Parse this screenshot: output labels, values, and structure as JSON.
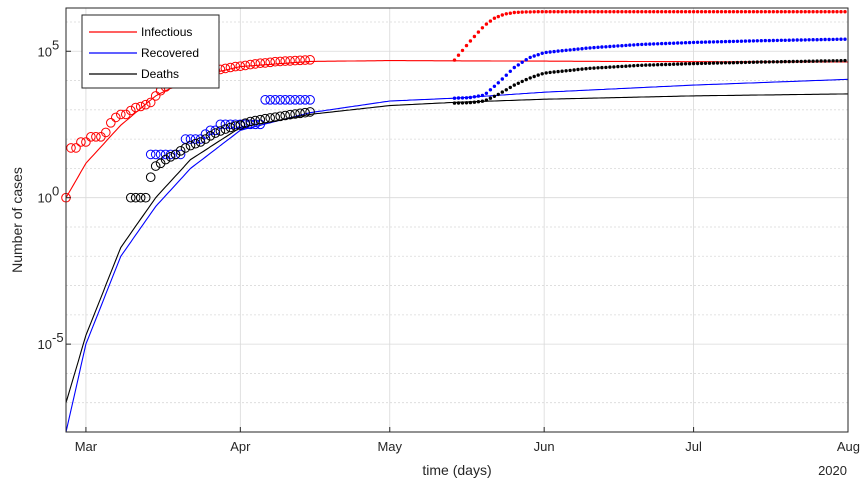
{
  "chart_data": {
    "type": "line",
    "xlabel": "time (days)",
    "ylabel": "Number of cases",
    "year_label": "2020",
    "x_range": [
      "2020-02-26",
      "2020-08-01"
    ],
    "y_scale": "log",
    "ylim": [
      1e-08,
      3000000.0
    ],
    "grid": true,
    "legend_position": "top-left",
    "x_ticks": [
      {
        "date": "2020-03-01",
        "label": "Mar"
      },
      {
        "date": "2020-04-01",
        "label": "Apr"
      },
      {
        "date": "2020-05-01",
        "label": "May"
      },
      {
        "date": "2020-06-01",
        "label": "Jun"
      },
      {
        "date": "2020-07-01",
        "label": "Jul"
      },
      {
        "date": "2020-08-01",
        "label": "Aug"
      }
    ],
    "y_ticks": [
      {
        "value": 1e-05,
        "base": "10",
        "exp": "-5"
      },
      {
        "value": 1,
        "base": "10",
        "exp": "0"
      },
      {
        "value": 100000.0,
        "base": "10",
        "exp": "5"
      }
    ],
    "colors": {
      "infectious": "#ff0000",
      "recovered": "#0000ff",
      "deaths": "#000000",
      "grid": "#d9d9d9",
      "axis": "#262626"
    },
    "series": [
      {
        "name": "Infectious",
        "color": "#ff0000",
        "observed": {
          "x": [
            "2020-02-26",
            "2020-02-27",
            "2020-02-28",
            "2020-02-29",
            "2020-03-01",
            "2020-03-02",
            "2020-03-03",
            "2020-03-04",
            "2020-03-05",
            "2020-03-06",
            "2020-03-07",
            "2020-03-08",
            "2020-03-09",
            "2020-03-10",
            "2020-03-11",
            "2020-03-12",
            "2020-03-13",
            "2020-03-14",
            "2020-03-15",
            "2020-03-16",
            "2020-03-17",
            "2020-03-18",
            "2020-03-19",
            "2020-03-20",
            "2020-03-21",
            "2020-03-22",
            "2020-03-23",
            "2020-03-24",
            "2020-03-25",
            "2020-03-26",
            "2020-03-27",
            "2020-03-28",
            "2020-03-29",
            "2020-03-30",
            "2020-03-31",
            "2020-04-01",
            "2020-04-02",
            "2020-04-03",
            "2020-04-04",
            "2020-04-05",
            "2020-04-06",
            "2020-04-07",
            "2020-04-08",
            "2020-04-09",
            "2020-04-10",
            "2020-04-11",
            "2020-04-12",
            "2020-04-13",
            "2020-04-14",
            "2020-04-15"
          ],
          "y": [
            1,
            50,
            50,
            80,
            80,
            120,
            120,
            120,
            170,
            360,
            550,
            700,
            700,
            950,
            1200,
            1300,
            1500,
            1800,
            3000,
            4500,
            6000,
            7500,
            8500,
            10000,
            12000,
            13000,
            15000,
            17000,
            19000,
            20000,
            22000,
            24000,
            26000,
            28000,
            30000,
            31000,
            33000,
            35000,
            37000,
            39000,
            40000,
            42000,
            44000,
            45000,
            46000,
            47000,
            48000,
            49000,
            50000,
            51000
          ]
        },
        "model_fit": {
          "x": [
            "2020-02-26",
            "2020-03-01",
            "2020-03-08",
            "2020-03-15",
            "2020-03-22",
            "2020-04-01",
            "2020-04-15",
            "2020-05-01",
            "2020-06-01",
            "2020-07-01",
            "2020-08-01"
          ],
          "y": [
            1,
            15,
            300,
            3000,
            12000,
            30000,
            45000,
            48000,
            46000,
            44000,
            43000
          ]
        },
        "forecast": {
          "x": [
            "2020-05-14",
            "2020-05-16",
            "2020-05-18",
            "2020-05-20",
            "2020-05-22",
            "2020-05-24",
            "2020-05-26",
            "2020-05-28",
            "2020-06-01",
            "2020-07-01",
            "2020-08-01"
          ],
          "y": [
            50000,
            130000,
            320000,
            750000,
            1350000,
            1850000,
            2100000,
            2200000,
            2250000,
            2250000,
            2250000
          ]
        }
      },
      {
        "name": "Recovered",
        "color": "#0000ff",
        "observed": {
          "x": [
            "2020-03-14",
            "2020-03-15",
            "2020-03-16",
            "2020-03-17",
            "2020-03-18",
            "2020-03-19",
            "2020-03-20",
            "2020-03-21",
            "2020-03-22",
            "2020-03-23",
            "2020-03-24",
            "2020-03-25",
            "2020-03-26",
            "2020-03-27",
            "2020-03-28",
            "2020-03-29",
            "2020-03-30",
            "2020-03-31",
            "2020-04-01",
            "2020-04-02",
            "2020-04-03",
            "2020-04-04",
            "2020-04-05",
            "2020-04-06",
            "2020-04-07",
            "2020-04-08",
            "2020-04-09",
            "2020-04-10",
            "2020-04-11",
            "2020-04-12",
            "2020-04-13",
            "2020-04-14",
            "2020-04-15"
          ],
          "y": [
            30,
            30,
            30,
            30,
            30,
            30,
            30,
            100,
            100,
            100,
            100,
            150,
            200,
            200,
            320,
            320,
            320,
            320,
            320,
            320,
            320,
            320,
            320,
            2200,
            2200,
            2200,
            2200,
            2200,
            2200,
            2200,
            2200,
            2200,
            2200
          ]
        },
        "model_fit": {
          "x": [
            "2020-02-26",
            "2020-03-01",
            "2020-03-08",
            "2020-03-15",
            "2020-03-22",
            "2020-04-01",
            "2020-04-15",
            "2020-05-01",
            "2020-05-14",
            "2020-06-01",
            "2020-07-01",
            "2020-08-01"
          ],
          "y": [
            1e-08,
            1e-05,
            0.01,
            0.5,
            10,
            200,
            800,
            2000,
            2500,
            4000,
            7000,
            11000
          ]
        },
        "forecast": {
          "x": [
            "2020-05-14",
            "2020-05-17",
            "2020-05-20",
            "2020-05-23",
            "2020-05-26",
            "2020-05-29",
            "2020-06-01",
            "2020-06-10",
            "2020-06-20",
            "2020-07-01",
            "2020-07-15",
            "2020-08-01"
          ],
          "y": [
            2500,
            2600,
            3200,
            9000,
            28000,
            60000,
            90000,
            130000,
            170000,
            200000,
            230000,
            260000
          ]
        }
      },
      {
        "name": "Deaths",
        "color": "#000000",
        "observed": {
          "x": [
            "2020-03-10",
            "2020-03-11",
            "2020-03-12",
            "2020-03-13",
            "2020-03-14",
            "2020-03-15",
            "2020-03-16",
            "2020-03-17",
            "2020-03-18",
            "2020-03-19",
            "2020-03-20",
            "2020-03-21",
            "2020-03-22",
            "2020-03-23",
            "2020-03-24",
            "2020-03-25",
            "2020-03-26",
            "2020-03-27",
            "2020-03-28",
            "2020-03-29",
            "2020-03-30",
            "2020-03-31",
            "2020-04-01",
            "2020-04-02",
            "2020-04-03",
            "2020-04-04",
            "2020-04-05",
            "2020-04-06",
            "2020-04-07",
            "2020-04-08",
            "2020-04-09",
            "2020-04-10",
            "2020-04-11",
            "2020-04-12",
            "2020-04-13",
            "2020-04-14",
            "2020-04-15"
          ],
          "y": [
            1,
            1,
            1,
            1,
            5,
            12,
            15,
            20,
            25,
            30,
            40,
            50,
            60,
            70,
            80,
            100,
            130,
            160,
            190,
            220,
            250,
            280,
            300,
            350,
            400,
            430,
            460,
            500,
            530,
            560,
            600,
            640,
            680,
            720,
            760,
            800,
            850
          ]
        },
        "model_fit": {
          "x": [
            "2020-02-26",
            "2020-03-01",
            "2020-03-08",
            "2020-03-15",
            "2020-03-22",
            "2020-04-01",
            "2020-04-15",
            "2020-05-01",
            "2020-05-14",
            "2020-06-01",
            "2020-07-01",
            "2020-08-01"
          ],
          "y": [
            1e-07,
            2e-05,
            0.02,
            1,
            20,
            250,
            700,
            1400,
            1800,
            2300,
            3000,
            3500
          ]
        },
        "forecast": {
          "x": [
            "2020-05-14",
            "2020-05-17",
            "2020-05-20",
            "2020-05-23",
            "2020-05-26",
            "2020-05-29",
            "2020-06-01",
            "2020-06-10",
            "2020-06-20",
            "2020-07-01",
            "2020-07-15",
            "2020-08-01"
          ],
          "y": [
            1700,
            1750,
            2000,
            3500,
            7000,
            12000,
            18000,
            26000,
            33000,
            38000,
            43000,
            48000
          ]
        }
      }
    ]
  }
}
